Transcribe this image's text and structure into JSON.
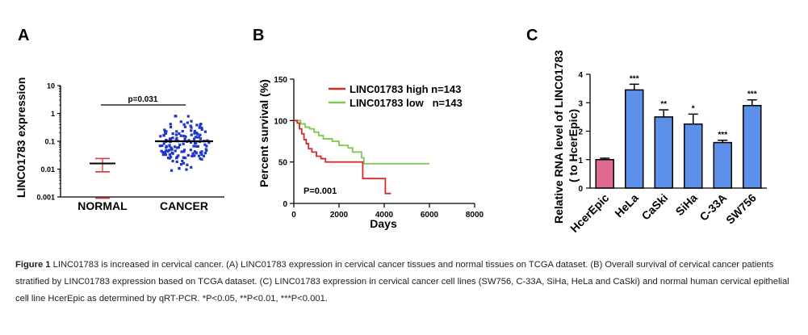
{
  "panels": {
    "A": {
      "letter": "A",
      "ylabel": "LINC01783 expression",
      "yticks": [
        "10",
        "1",
        "0.1",
        "0.01",
        "0.001"
      ],
      "xticks": [
        "NORMAL",
        "CANCER"
      ],
      "pvalue": "p=0.031"
    },
    "B": {
      "letter": "B",
      "ylabel": "Percent survival (%)",
      "xlabel": "Days",
      "yticks": [
        "150",
        "100",
        "50",
        "0"
      ],
      "xticks": [
        "0",
        "2000",
        "4000",
        "6000",
        "8000"
      ],
      "legend_high": "LINC01783 high n=143",
      "legend_low": "LINC01783 low   n=143",
      "pvalue": "P=0.001",
      "color_high": "#d42a2a",
      "color_low": "#7ec84a"
    },
    "C": {
      "letter": "C",
      "ylabel_line1": "Relative RNA level of LINC01783",
      "ylabel_line2": "( to HcerEpic)",
      "yticks": [
        "4",
        "3",
        "2",
        "1",
        "0"
      ],
      "color_control": "#e06b8e",
      "color_cancer": "#5b8fe8"
    }
  },
  "chart_data": [
    {
      "type": "scatter",
      "panel": "A",
      "categories": [
        "NORMAL",
        "CANCER"
      ],
      "y_scale": "log",
      "ylim": [
        0.001,
        10
      ],
      "series": [
        {
          "group": "NORMAL",
          "values": [
            0.024,
            0.016,
            0.008,
            0.0009
          ],
          "median": 0.016
        },
        {
          "group": "CANCER",
          "count": 143,
          "range": [
            0.005,
            0.8
          ],
          "median": 0.1
        }
      ],
      "annotation": "p=0.031"
    },
    {
      "type": "line",
      "panel": "B",
      "xlim": [
        0,
        8000
      ],
      "ylim": [
        0,
        150
      ],
      "series": [
        {
          "name": "LINC01783 high n=143",
          "color": "#d42a2a",
          "points": [
            [
              0,
              100
            ],
            [
              150,
              97
            ],
            [
              250,
              90
            ],
            [
              350,
              84
            ],
            [
              450,
              77
            ],
            [
              550,
              72
            ],
            [
              650,
              66
            ],
            [
              800,
              62
            ],
            [
              1000,
              57
            ],
            [
              1200,
              54
            ],
            [
              1400,
              50
            ],
            [
              2000,
              50
            ],
            [
              2900,
              50
            ],
            [
              3050,
              30
            ],
            [
              4000,
              30
            ],
            [
              4050,
              12
            ],
            [
              4300,
              12
            ]
          ]
        },
        {
          "name": "LINC01783 low   n=143",
          "color": "#7ec84a",
          "points": [
            [
              0,
              100
            ],
            [
              300,
              96
            ],
            [
              500,
              92
            ],
            [
              700,
              90
            ],
            [
              900,
              86
            ],
            [
              1100,
              82
            ],
            [
              1300,
              78
            ],
            [
              1700,
              75
            ],
            [
              2000,
              70
            ],
            [
              2400,
              67
            ],
            [
              2600,
              62
            ],
            [
              3000,
              55
            ],
            [
              3100,
              48
            ],
            [
              6000,
              48
            ]
          ]
        }
      ],
      "annotation": "P=0.001"
    },
    {
      "type": "bar",
      "panel": "C",
      "categories": [
        "HcerEpic",
        "HeLa",
        "CaSki",
        "SiHa",
        "C-33A",
        "SW756"
      ],
      "values": [
        1.0,
        3.45,
        2.5,
        2.25,
        1.6,
        2.9
      ],
      "errors": [
        0.05,
        0.2,
        0.25,
        0.35,
        0.08,
        0.2
      ],
      "significance": [
        "",
        "***",
        "**",
        "*",
        "***",
        "***"
      ],
      "ylim": [
        0,
        4
      ]
    }
  ],
  "caption": {
    "lead": "Figure 1",
    "text": " LINC01783 is increased in cervical cancer. (A) LINC01783 expression in cervical cancer tissues and normal tissues on TCGA dataset. (B) Overall survival of cervical cancer patients stratified by LINC01783 expression based on TCGA dataset. (C) LINC01783 expression in cervical cancer cell lines (SW756, C-33A, SiHa, HeLa and CaSki) and normal human cervical epithelial cell line HcerEpic as determined by qRT-PCR. *P<0.05, **P<0.01, ***P<0.001."
  }
}
